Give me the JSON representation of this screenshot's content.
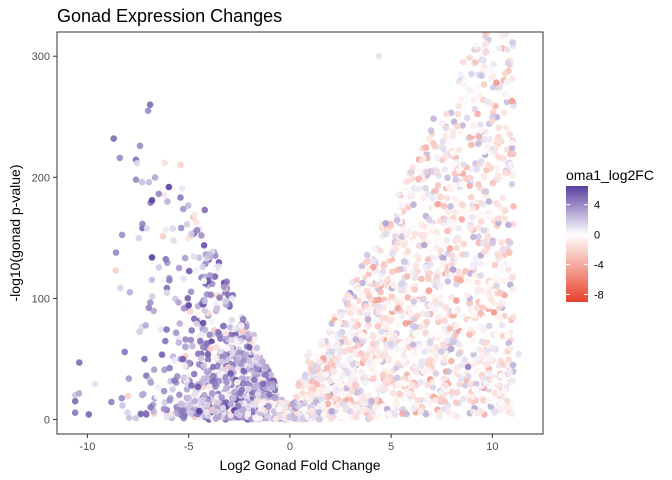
{
  "chart_data": {
    "type": "scatter",
    "title": "Gonad Expression Changes",
    "xlabel": "Log2 Gonad Fold Change",
    "ylabel": "-log10(gonad p-value)",
    "xlim": [
      -11.5,
      12.5
    ],
    "ylim": [
      -12,
      320
    ],
    "x_ticks": [
      -10,
      -5,
      0,
      5,
      10
    ],
    "y_ticks": [
      0,
      100,
      200,
      300
    ],
    "grid": false,
    "colorbar": {
      "title": "oma1_log2FC",
      "min": -9,
      "max": 6.5,
      "ticks": [
        4,
        0,
        -4,
        -8
      ],
      "tick_labels": [
        "4",
        "0",
        "-4",
        "-8"
      ],
      "low_color": "#e8412b",
      "mid_color": "#ffffff",
      "high_color": "#5a3fa0",
      "placement": "right"
    },
    "point_count_estimate": 3000,
    "points_sample": [
      {
        "x": -6.9,
        "y": 260,
        "c": 5
      },
      {
        "x": -7.0,
        "y": 255,
        "c": 4
      },
      {
        "x": -8.7,
        "y": 232,
        "c": 5
      },
      {
        "x": -7.4,
        "y": 226,
        "c": 4
      },
      {
        "x": -8.4,
        "y": 216,
        "c": 4
      },
      {
        "x": -5.4,
        "y": 210,
        "c": -2
      },
      {
        "x": -7.6,
        "y": 198,
        "c": 4
      },
      {
        "x": -4.2,
        "y": 173,
        "c": 5
      },
      {
        "x": -10.4,
        "y": 47,
        "c": 5
      },
      {
        "x": 3.1,
        "y": 262,
        "c": 0
      },
      {
        "x": 3.7,
        "y": 292,
        "c": 0
      },
      {
        "x": 4.4,
        "y": 300,
        "c": 1
      },
      {
        "x": 5.1,
        "y": 305,
        "c": 0
      },
      {
        "x": 10.1,
        "y": 32,
        "c": 0
      },
      {
        "x": 11.3,
        "y": 54,
        "c": 1
      },
      {
        "x": 0.0,
        "y": 2,
        "c": 2
      }
    ]
  }
}
